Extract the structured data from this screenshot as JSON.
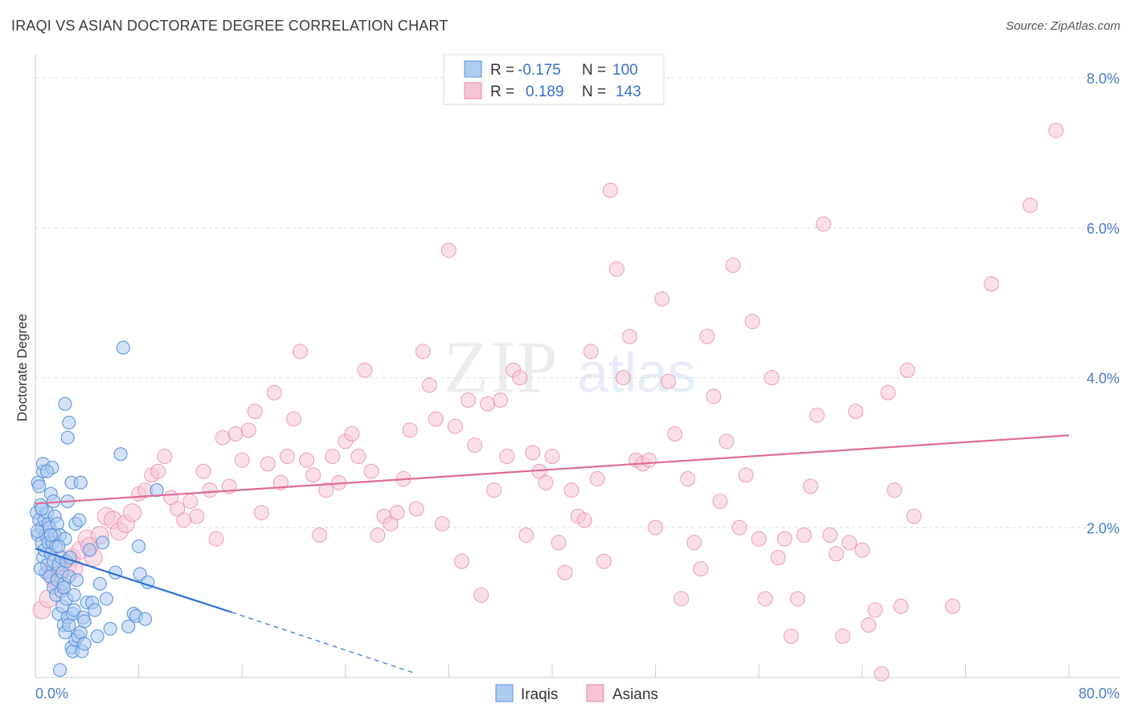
{
  "header": {
    "title": "IRAQI VS ASIAN DOCTORATE DEGREE CORRELATION CHART",
    "source": "Source: ZipAtlas.com"
  },
  "legend": {
    "r_label": "R =",
    "n_label": "N =",
    "iraqis": {
      "r": "-0.175",
      "n": "100"
    },
    "asians": {
      "r": "0.189",
      "n": "143"
    }
  },
  "colors": {
    "iraqis_fill": "#aecbf1",
    "iraqis_stroke": "#5b93dd",
    "iraqis_line": "#2b6fd6",
    "asians_fill": "#f7c4d5",
    "asians_stroke": "#e58aa9",
    "asians_line": "#e06b94"
  },
  "chart_data": {
    "type": "scatter",
    "title": "IRAQI VS ASIAN DOCTORATE DEGREE CORRELATION CHART",
    "ylabel": "Doctorate Degree",
    "xlabel": "",
    "xlim": [
      0,
      80
    ],
    "ylim": [
      0,
      8.0
    ],
    "x_tick_labels": [
      "0.0%",
      "80.0%"
    ],
    "y_tick_labels": [
      "2.0%",
      "4.0%",
      "6.0%",
      "8.0%"
    ],
    "y_ticks": [
      2,
      4,
      6,
      8
    ],
    "grid": true,
    "legend_position": "top-center",
    "watermark": "ZIPatlas",
    "series": [
      {
        "name": "Iraqis",
        "r": -0.175,
        "n": 100,
        "trend": {
          "x": [
            0,
            15.2
          ],
          "y": [
            1.72,
            0.87
          ],
          "dashed_to": [
            29.5,
            0.05
          ]
        },
        "points": [
          [
            0.1,
            2.2
          ],
          [
            0.2,
            1.9
          ],
          [
            0.2,
            2.6
          ],
          [
            0.3,
            2.1
          ],
          [
            0.4,
            2.3
          ],
          [
            0.5,
            1.8
          ],
          [
            0.5,
            2.0
          ],
          [
            0.6,
            1.6
          ],
          [
            0.6,
            2.75
          ],
          [
            0.6,
            2.85
          ],
          [
            0.7,
            1.7
          ],
          [
            0.7,
            2.1
          ],
          [
            0.8,
            1.4
          ],
          [
            0.8,
            1.9
          ],
          [
            0.9,
            1.5
          ],
          [
            0.9,
            2.2
          ],
          [
            1.0,
            1.8
          ],
          [
            1.0,
            2.05
          ],
          [
            1.1,
            1.35
          ],
          [
            1.1,
            2.0
          ],
          [
            1.2,
            1.65
          ],
          [
            1.2,
            2.45
          ],
          [
            1.3,
            1.8
          ],
          [
            1.3,
            2.8
          ],
          [
            1.4,
            1.2
          ],
          [
            1.4,
            1.55
          ],
          [
            1.5,
            1.9
          ],
          [
            1.5,
            2.15
          ],
          [
            1.6,
            1.1
          ],
          [
            1.6,
            1.75
          ],
          [
            1.7,
            1.3
          ],
          [
            1.7,
            2.05
          ],
          [
            1.8,
            0.85
          ],
          [
            1.8,
            1.5
          ],
          [
            1.9,
            1.9
          ],
          [
            1.9,
            0.1
          ],
          [
            2.0,
            1.15
          ],
          [
            2.0,
            1.6
          ],
          [
            2.1,
            0.95
          ],
          [
            2.1,
            1.4
          ],
          [
            2.2,
            0.7
          ],
          [
            2.2,
            1.25
          ],
          [
            2.3,
            1.85
          ],
          [
            2.3,
            0.6
          ],
          [
            2.4,
            1.05
          ],
          [
            2.4,
            1.55
          ],
          [
            2.5,
            0.8
          ],
          [
            2.5,
            2.35
          ],
          [
            2.6,
            0.7
          ],
          [
            2.6,
            1.35
          ],
          [
            2.3,
            3.65
          ],
          [
            2.5,
            3.2
          ],
          [
            2.6,
            3.4
          ],
          [
            2.7,
            1.6
          ],
          [
            2.8,
            0.4
          ],
          [
            2.8,
            2.6
          ],
          [
            2.9,
            0.35
          ],
          [
            2.9,
            0.85
          ],
          [
            3.0,
            1.1
          ],
          [
            3.0,
            0.9
          ],
          [
            3.1,
            0.5
          ],
          [
            3.1,
            2.05
          ],
          [
            3.2,
            1.3
          ],
          [
            3.3,
            0.55
          ],
          [
            3.4,
            2.1
          ],
          [
            3.5,
            2.6
          ],
          [
            3.5,
            0.6
          ],
          [
            3.6,
            0.35
          ],
          [
            3.7,
            0.8
          ],
          [
            3.8,
            0.75
          ],
          [
            3.8,
            0.45
          ],
          [
            4.0,
            1.0
          ],
          [
            4.2,
            1.7
          ],
          [
            4.4,
            1.0
          ],
          [
            4.6,
            0.9
          ],
          [
            4.8,
            0.55
          ],
          [
            5.0,
            1.25
          ],
          [
            5.2,
            1.8
          ],
          [
            5.5,
            1.05
          ],
          [
            5.8,
            0.65
          ],
          [
            6.2,
            1.4
          ],
          [
            6.6,
            2.98
          ],
          [
            6.8,
            4.4
          ],
          [
            7.2,
            0.68
          ],
          [
            7.6,
            0.85
          ],
          [
            7.8,
            0.82
          ],
          [
            8.0,
            1.75
          ],
          [
            8.1,
            1.38
          ],
          [
            8.5,
            0.78
          ],
          [
            8.7,
            1.27
          ],
          [
            9.4,
            2.5
          ],
          [
            0.3,
            2.55
          ],
          [
            0.4,
            1.45
          ],
          [
            0.9,
            2.75
          ],
          [
            1.2,
            1.9
          ],
          [
            1.4,
            2.35
          ],
          [
            1.8,
            1.75
          ],
          [
            2.2,
            1.2
          ],
          [
            0.15,
            1.95
          ],
          [
            0.5,
            2.25
          ]
        ]
      },
      {
        "name": "Asians",
        "r": 0.189,
        "n": 143,
        "trend": {
          "x": [
            0,
            80
          ],
          "y": [
            2.32,
            3.23
          ]
        },
        "points": [
          [
            0.5,
            0.9
          ],
          [
            1.0,
            1.05
          ],
          [
            1.2,
            1.4
          ],
          [
            1.5,
            1.3
          ],
          [
            1.8,
            1.25
          ],
          [
            2.0,
            1.45
          ],
          [
            2.5,
            1.5
          ],
          [
            2.8,
            1.6
          ],
          [
            3.0,
            1.45
          ],
          [
            3.5,
            1.7
          ],
          [
            4.0,
            1.85
          ],
          [
            4.2,
            1.75
          ],
          [
            4.5,
            1.6
          ],
          [
            5.0,
            1.9
          ],
          [
            5.5,
            2.15
          ],
          [
            6.0,
            2.1
          ],
          [
            6.5,
            1.95
          ],
          [
            7.0,
            2.05
          ],
          [
            7.5,
            2.2
          ],
          [
            8.0,
            2.45
          ],
          [
            8.5,
            2.5
          ],
          [
            9.0,
            2.7
          ],
          [
            9.5,
            2.75
          ],
          [
            10.0,
            2.95
          ],
          [
            10.5,
            2.4
          ],
          [
            11.0,
            2.25
          ],
          [
            11.5,
            2.1
          ],
          [
            12.0,
            2.35
          ],
          [
            12.5,
            2.15
          ],
          [
            13.0,
            2.75
          ],
          [
            13.5,
            2.5
          ],
          [
            14.0,
            1.85
          ],
          [
            14.5,
            3.2
          ],
          [
            15.0,
            2.55
          ],
          [
            15.5,
            3.25
          ],
          [
            16.0,
            2.9
          ],
          [
            16.5,
            3.3
          ],
          [
            17.0,
            3.55
          ],
          [
            17.5,
            2.2
          ],
          [
            18.0,
            2.85
          ],
          [
            18.5,
            3.8
          ],
          [
            19.0,
            2.6
          ],
          [
            19.5,
            2.95
          ],
          [
            20.0,
            3.45
          ],
          [
            20.5,
            4.35
          ],
          [
            21.0,
            2.9
          ],
          [
            21.5,
            2.7
          ],
          [
            22.0,
            1.9
          ],
          [
            22.5,
            2.5
          ],
          [
            23.0,
            2.95
          ],
          [
            23.5,
            2.6
          ],
          [
            24.0,
            3.15
          ],
          [
            24.5,
            3.25
          ],
          [
            25.0,
            2.95
          ],
          [
            25.5,
            4.1
          ],
          [
            26.0,
            2.75
          ],
          [
            26.5,
            1.9
          ],
          [
            27.0,
            2.15
          ],
          [
            27.5,
            2.05
          ],
          [
            28.0,
            2.2
          ],
          [
            28.5,
            2.65
          ],
          [
            29.0,
            3.3
          ],
          [
            29.5,
            2.25
          ],
          [
            30.0,
            4.35
          ],
          [
            30.5,
            3.9
          ],
          [
            31.0,
            3.45
          ],
          [
            31.5,
            2.05
          ],
          [
            32.0,
            5.7
          ],
          [
            32.5,
            3.35
          ],
          [
            33.0,
            1.55
          ],
          [
            33.5,
            3.7
          ],
          [
            34.0,
            3.1
          ],
          [
            34.5,
            1.1
          ],
          [
            35.0,
            3.65
          ],
          [
            35.5,
            2.5
          ],
          [
            36.0,
            3.7
          ],
          [
            36.5,
            2.95
          ],
          [
            37.0,
            4.1
          ],
          [
            37.5,
            4.0
          ],
          [
            38.0,
            1.9
          ],
          [
            38.5,
            3.0
          ],
          [
            39.0,
            2.75
          ],
          [
            39.5,
            2.6
          ],
          [
            40.0,
            2.95
          ],
          [
            40.5,
            1.8
          ],
          [
            41.0,
            1.4
          ],
          [
            41.5,
            2.5
          ],
          [
            42.0,
            2.15
          ],
          [
            42.5,
            2.1
          ],
          [
            43.0,
            4.35
          ],
          [
            43.5,
            2.65
          ],
          [
            44.0,
            1.55
          ],
          [
            44.5,
            6.5
          ],
          [
            45.0,
            5.45
          ],
          [
            45.5,
            4.0
          ],
          [
            46.0,
            4.55
          ],
          [
            46.5,
            2.9
          ],
          [
            47.0,
            2.85
          ],
          [
            47.5,
            2.9
          ],
          [
            48.0,
            2.0
          ],
          [
            48.5,
            5.05
          ],
          [
            49.0,
            3.95
          ],
          [
            49.5,
            3.25
          ],
          [
            50.0,
            1.05
          ],
          [
            50.5,
            2.65
          ],
          [
            51.0,
            1.8
          ],
          [
            51.5,
            1.45
          ],
          [
            52.0,
            4.55
          ],
          [
            52.5,
            3.75
          ],
          [
            53.0,
            2.35
          ],
          [
            53.5,
            3.15
          ],
          [
            54.0,
            5.5
          ],
          [
            54.5,
            2.0
          ],
          [
            55.0,
            2.7
          ],
          [
            55.5,
            4.75
          ],
          [
            56.0,
            1.85
          ],
          [
            56.5,
            1.05
          ],
          [
            57.0,
            4.0
          ],
          [
            57.5,
            1.6
          ],
          [
            58.0,
            1.85
          ],
          [
            58.5,
            0.55
          ],
          [
            59.0,
            1.05
          ],
          [
            59.5,
            1.9
          ],
          [
            60.0,
            2.55
          ],
          [
            60.5,
            3.5
          ],
          [
            61.0,
            6.05
          ],
          [
            61.5,
            1.9
          ],
          [
            62.0,
            1.65
          ],
          [
            62.5,
            0.55
          ],
          [
            63.0,
            1.8
          ],
          [
            63.5,
            3.55
          ],
          [
            64.0,
            1.7
          ],
          [
            64.5,
            0.7
          ],
          [
            65.0,
            0.9
          ],
          [
            65.5,
            0.05
          ],
          [
            66.0,
            3.8
          ],
          [
            66.5,
            2.5
          ],
          [
            67.0,
            0.95
          ],
          [
            67.5,
            4.1
          ],
          [
            68.0,
            2.15
          ],
          [
            71.0,
            0.95
          ],
          [
            74.0,
            5.25
          ],
          [
            77.0,
            6.3
          ],
          [
            79.0,
            7.3
          ]
        ]
      }
    ]
  }
}
